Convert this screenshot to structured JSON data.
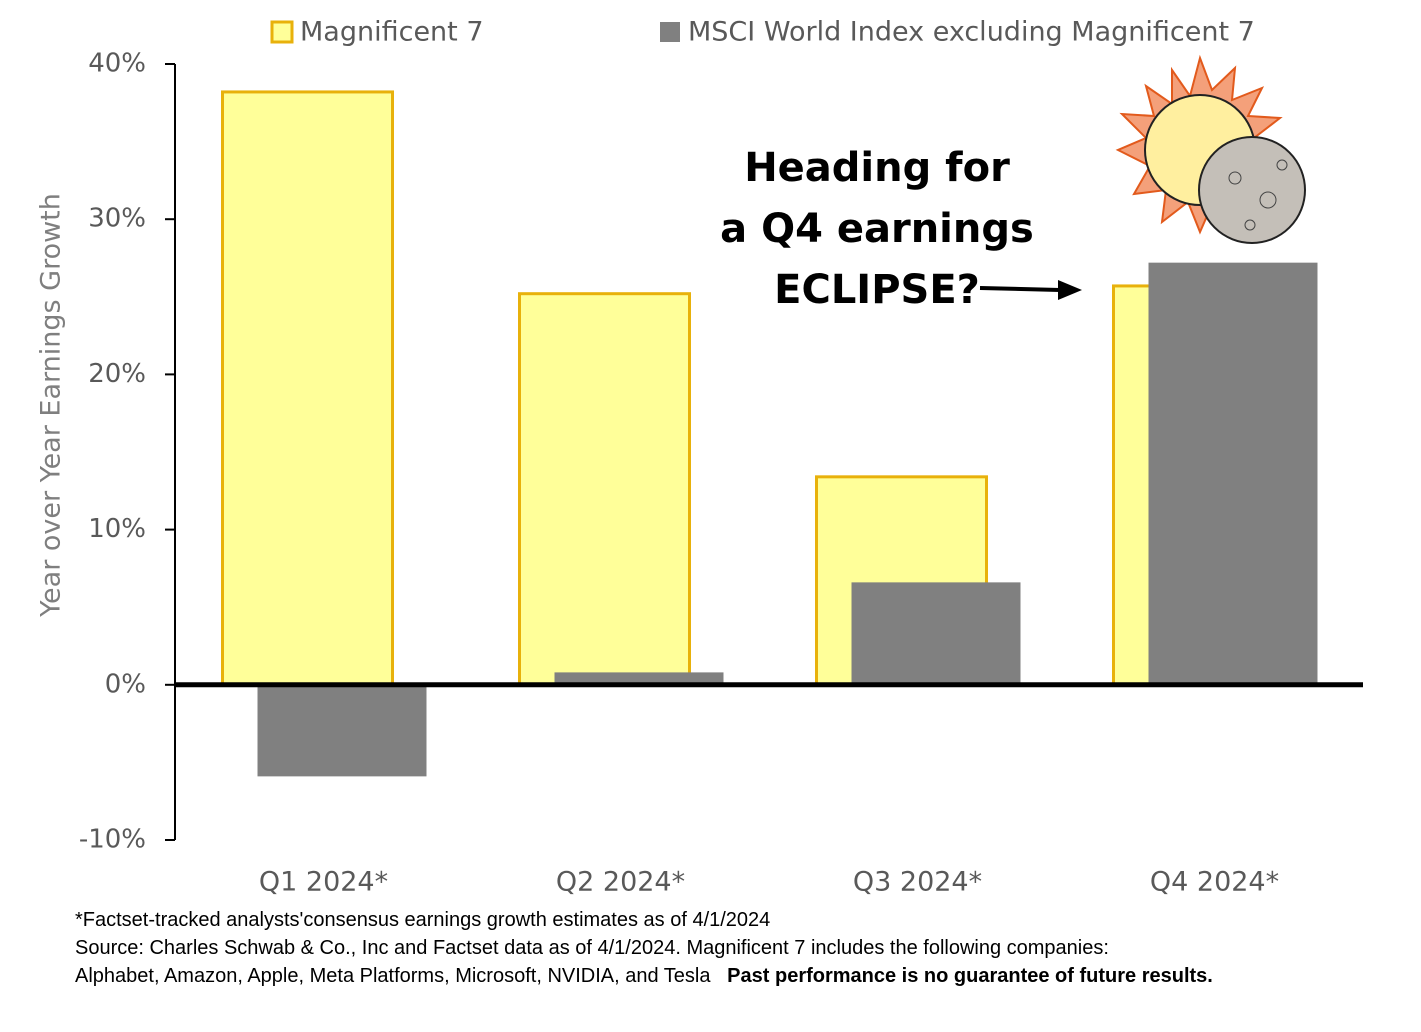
{
  "chart_data": {
    "type": "bar",
    "categories": [
      "Q1 2024*",
      "Q2 2024*",
      "Q3 2024*",
      "Q4 2024*"
    ],
    "series": [
      {
        "name": "Magnificent 7",
        "color": "#ffff99",
        "edgecolor": "#e8b10b",
        "values": [
          38.2,
          25.2,
          13.4,
          25.7
        ]
      },
      {
        "name": "MSCI World Index excluding Magnificent 7",
        "color": "#808080",
        "values": [
          -5.9,
          0.8,
          6.6,
          27.2
        ]
      }
    ],
    "ylabel": "Year over Year Earnings Growth",
    "ylim": [
      -10,
      40
    ],
    "yticks": [
      {
        "value": -10,
        "label": "-10%"
      },
      {
        "value": 0,
        "label": "0%"
      },
      {
        "value": 10,
        "label": "10%"
      },
      {
        "value": 20,
        "label": "20%"
      },
      {
        "value": 30,
        "label": "30%"
      },
      {
        "value": 40,
        "label": "40%"
      }
    ],
    "annotation": [
      "Heading for",
      "a Q4 earnings",
      "ECLIPSE?"
    ],
    "notes": [
      "*Factset-tracked analysts'consensus earnings growth estimates as of 4/1/2024",
      "Source: Charles Schwab & Co., Inc and Factset data as of 4/1/2024. Magnificent 7 includes the following companies:",
      "Alphabet, Amazon, Apple, Meta Platforms, Microsoft, NVIDIA, and Tesla"
    ],
    "disclaimer": "Past performance is no guarantee of future results."
  }
}
